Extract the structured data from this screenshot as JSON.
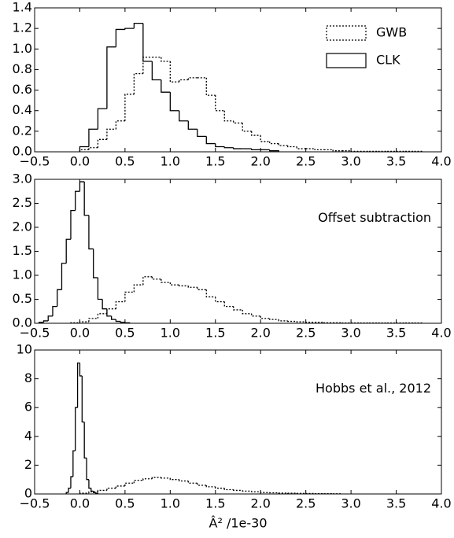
{
  "chart_data": [
    {
      "type": "histogram",
      "legend": "upper right",
      "xlim": [
        -0.5,
        4.0
      ],
      "ylim": [
        0,
        1.4
      ],
      "xticks": [
        {
          "value": -0.5,
          "label": "−0.5"
        },
        {
          "value": 0,
          "label": "0.0"
        },
        0.5,
        {
          "value": 1,
          "label": "1.0"
        },
        1.5,
        {
          "value": 2,
          "label": "2.0"
        },
        2.5,
        {
          "value": 3,
          "label": "3.0"
        },
        3.5,
        {
          "value": 4,
          "label": "4.0"
        }
      ],
      "yticks": [
        {
          "value": 0,
          "label": "0.0"
        },
        0.2,
        0.4,
        0.6,
        0.8,
        {
          "value": 1,
          "label": "1.0"
        },
        1.2,
        1.4
      ],
      "series": [
        {
          "name": "GWB",
          "color": "#000000",
          "style": "dotted",
          "bins": [
            0,
            0.1,
            0.2,
            0.3,
            0.4,
            0.5,
            0.6,
            0.7,
            0.8,
            0.9,
            1.0,
            1.1,
            1.2,
            1.3,
            1.4,
            1.5,
            1.6,
            1.7,
            1.8,
            1.9,
            2.0,
            2.1,
            2.2,
            2.3,
            2.4,
            2.5,
            2.6,
            2.7,
            2.8,
            2.9,
            3.0,
            3.1,
            3.2,
            3.3,
            3.4,
            3.5,
            3.6,
            3.7,
            3.8
          ],
          "values": [
            0.02,
            0.04,
            0.12,
            0.22,
            0.3,
            0.56,
            0.76,
            0.92,
            0.92,
            0.88,
            0.68,
            0.7,
            0.72,
            0.72,
            0.55,
            0.4,
            0.3,
            0.28,
            0.2,
            0.16,
            0.1,
            0.08,
            0.06,
            0.05,
            0.03,
            0.03,
            0.02,
            0.02,
            0.01,
            0.01,
            0.005,
            0.005,
            0.005,
            0.005,
            0.005,
            0.005,
            0.005,
            0.005
          ]
        },
        {
          "name": "CLK",
          "color": "#000000",
          "style": "solid",
          "bins": [
            0,
            0.1,
            0.2,
            0.3,
            0.4,
            0.5,
            0.6,
            0.7,
            0.8,
            0.9,
            1.0,
            1.1,
            1.2,
            1.3,
            1.4,
            1.5,
            1.6,
            1.7,
            1.8,
            1.9,
            2.0,
            2.1,
            2.2
          ],
          "values": [
            0.05,
            0.22,
            0.42,
            1.02,
            1.19,
            1.2,
            1.25,
            0.88,
            0.7,
            0.58,
            0.4,
            0.3,
            0.22,
            0.15,
            0.08,
            0.05,
            0.04,
            0.03,
            0.03,
            0.02,
            0.02,
            0.01
          ]
        }
      ]
    },
    {
      "type": "histogram",
      "annotation": "Offset subtraction",
      "xlim": [
        -0.5,
        4.0
      ],
      "ylim": [
        0,
        3.0
      ],
      "xticks": [
        {
          "value": -0.5,
          "label": "−0.5"
        },
        {
          "value": 0,
          "label": "0.0"
        },
        0.5,
        {
          "value": 1,
          "label": "1.0"
        },
        1.5,
        {
          "value": 2,
          "label": "2.0"
        },
        2.5,
        {
          "value": 3,
          "label": "3.0"
        },
        3.5,
        {
          "value": 4,
          "label": "4.0"
        }
      ],
      "yticks": [
        {
          "value": 0,
          "label": "0.0"
        },
        0.5,
        {
          "value": 1,
          "label": "1.0"
        },
        1.5,
        {
          "value": 2,
          "label": "2.0"
        },
        2.5,
        {
          "value": 3,
          "label": "3.0"
        }
      ],
      "series": [
        {
          "color": "#000000",
          "style": "dotted",
          "bins": [
            -0.1,
            0,
            0.1,
            0.2,
            0.3,
            0.4,
            0.5,
            0.6,
            0.7,
            0.8,
            0.9,
            1.0,
            1.1,
            1.2,
            1.3,
            1.4,
            1.5,
            1.6,
            1.7,
            1.8,
            1.9,
            2.0,
            2.1,
            2.2,
            2.3,
            2.4,
            2.5,
            2.6,
            2.7,
            2.8,
            2.9,
            3.0,
            3.1,
            3.2,
            3.3,
            3.4,
            3.5,
            3.6,
            3.7,
            3.8
          ],
          "values": [
            0.01,
            0.03,
            0.1,
            0.2,
            0.3,
            0.45,
            0.65,
            0.8,
            0.97,
            0.92,
            0.85,
            0.8,
            0.78,
            0.75,
            0.7,
            0.55,
            0.45,
            0.35,
            0.28,
            0.2,
            0.15,
            0.1,
            0.08,
            0.05,
            0.04,
            0.03,
            0.02,
            0.02,
            0.01,
            0.01,
            0.005,
            0.005,
            0.005,
            0.005,
            0.005,
            0.005,
            0.005,
            0.005,
            0.005
          ]
        },
        {
          "color": "#000000",
          "style": "solid",
          "bins": [
            -0.45,
            -0.4,
            -0.35,
            -0.3,
            -0.25,
            -0.2,
            -0.15,
            -0.1,
            -0.05,
            0,
            0.05,
            0.1,
            0.15,
            0.2,
            0.25,
            0.3,
            0.35,
            0.4,
            0.45,
            0.5,
            0.55
          ],
          "values": [
            0.02,
            0.05,
            0.15,
            0.35,
            0.7,
            1.25,
            1.75,
            2.35,
            2.75,
            2.95,
            2.25,
            1.55,
            0.95,
            0.5,
            0.3,
            0.15,
            0.08,
            0.04,
            0.02,
            0.01
          ]
        }
      ]
    },
    {
      "type": "histogram",
      "annotation": "Hobbs et al., 2012",
      "xlabel": "Â² /1e-30",
      "xlim": [
        -0.5,
        4.0
      ],
      "ylim": [
        0,
        10
      ],
      "xticks": [
        {
          "value": -0.5,
          "label": "−0.5"
        },
        {
          "value": 0,
          "label": "0.0"
        },
        0.5,
        {
          "value": 1,
          "label": "1.0"
        },
        1.5,
        {
          "value": 2,
          "label": "2.0"
        },
        2.5,
        {
          "value": 3,
          "label": "3.0"
        },
        3.5,
        {
          "value": 4,
          "label": "4.0"
        }
      ],
      "yticks": [
        0,
        2,
        4,
        6,
        8,
        10
      ],
      "series": [
        {
          "color": "#000000",
          "style": "dotted",
          "bins": [
            0,
            0.1,
            0.2,
            0.3,
            0.4,
            0.5,
            0.6,
            0.7,
            0.8,
            0.9,
            1.0,
            1.1,
            1.2,
            1.3,
            1.4,
            1.5,
            1.6,
            1.7,
            1.8,
            1.9,
            2.0,
            2.1,
            2.2,
            2.3,
            2.4,
            2.5,
            2.6,
            2.7,
            2.8,
            2.9
          ],
          "values": [
            0.05,
            0.15,
            0.25,
            0.4,
            0.55,
            0.75,
            0.95,
            1.05,
            1.15,
            1.1,
            1.0,
            0.9,
            0.75,
            0.6,
            0.5,
            0.4,
            0.3,
            0.25,
            0.2,
            0.15,
            0.1,
            0.08,
            0.06,
            0.05,
            0.04,
            0.03,
            0.02,
            0.02,
            0.01
          ]
        },
        {
          "color": "#000000",
          "style": "solid",
          "bins": [
            -0.15,
            -0.125,
            -0.1,
            -0.075,
            -0.05,
            -0.025,
            0,
            0.025,
            0.05,
            0.075,
            0.1,
            0.125,
            0.15,
            0.175,
            0.2
          ],
          "values": [
            0.1,
            0.4,
            1.2,
            3.0,
            6.0,
            9.1,
            8.2,
            5.0,
            2.5,
            1.0,
            0.4,
            0.2,
            0.1,
            0.05
          ]
        }
      ]
    }
  ]
}
